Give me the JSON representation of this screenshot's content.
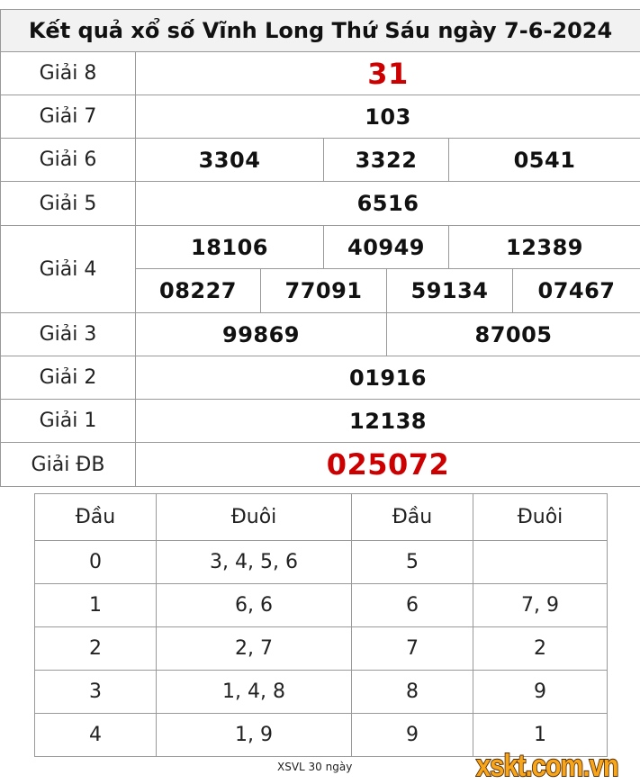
{
  "title": "Kết quả xổ số Vĩnh Long Thứ Sáu ngày 7-6-2024",
  "prizes": {
    "g8": {
      "label": "Giải 8",
      "values": [
        "31"
      ]
    },
    "g7": {
      "label": "Giải 7",
      "values": [
        "103"
      ]
    },
    "g6": {
      "label": "Giải 6",
      "values": [
        "3304",
        "3322",
        "0541"
      ]
    },
    "g5": {
      "label": "Giải 5",
      "values": [
        "6516"
      ]
    },
    "g4": {
      "label": "Giải 4",
      "values": [
        "18106",
        "40949",
        "12389",
        "08227",
        "77091",
        "59134",
        "07467"
      ]
    },
    "g3": {
      "label": "Giải 3",
      "values": [
        "99869",
        "87005"
      ]
    },
    "g2": {
      "label": "Giải 2",
      "values": [
        "01916"
      ]
    },
    "g1": {
      "label": "Giải 1",
      "values": [
        "12138"
      ]
    },
    "db": {
      "label": "Giải ĐB",
      "values": [
        "025072"
      ]
    }
  },
  "loto": {
    "headers": [
      "Đầu",
      "Đuôi",
      "Đầu",
      "Đuôi"
    ],
    "rows": [
      [
        "0",
        "3, 4, 5, 6",
        "5",
        ""
      ],
      [
        "1",
        "6, 6",
        "6",
        "7, 9"
      ],
      [
        "2",
        "2, 7",
        "7",
        "2"
      ],
      [
        "3",
        "1, 4, 8",
        "8",
        "9"
      ],
      [
        "4",
        "1, 9",
        "9",
        "1"
      ]
    ]
  },
  "footer_link": "XSVL 30 ngày",
  "logo": "xskt.com.vn",
  "colors": {
    "highlight": "#cc0000",
    "title_bg": "#f2f2f2",
    "logo": "#f7a51b"
  }
}
